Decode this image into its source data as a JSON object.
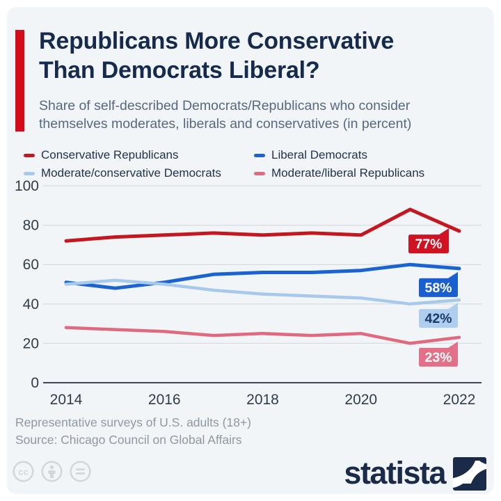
{
  "header": {
    "title": "Republicans More Conservative\nThan Democrats Liberal?",
    "subtitle": "Share of self-described Democrats/Republicans who consider\nthemselves moderates, liberals and conservatives (in percent)",
    "accent_color": "#d40b18"
  },
  "chart_data": {
    "type": "line",
    "x": [
      2014,
      2015,
      2016,
      2017,
      2018,
      2019,
      2020,
      2021,
      2022
    ],
    "x_tick_labels": [
      "2014",
      "2016",
      "2018",
      "2020",
      "2022"
    ],
    "ylim": [
      0,
      100
    ],
    "y_ticks": [
      0,
      20,
      40,
      60,
      80,
      100
    ],
    "grid": true,
    "legend_position": "top",
    "series": [
      {
        "name": "Conservative Republicans",
        "color": "#c4171f",
        "values": [
          72,
          74,
          75,
          76,
          75,
          76,
          75,
          88,
          77
        ],
        "end_label": "77%",
        "end_label_bg": "#d01223",
        "end_label_color": "#ffffff"
      },
      {
        "name": "Liberal Democrats",
        "color": "#1b63d1",
        "values": [
          51,
          48,
          51,
          55,
          56,
          56,
          57,
          60,
          58
        ],
        "end_label": "58%",
        "end_label_bg": "#1a5fd0",
        "end_label_color": "#ffffff"
      },
      {
        "name": "Moderate/conservative Democrats",
        "color": "#a7c9ec",
        "values": [
          50,
          52,
          50,
          47,
          45,
          44,
          43,
          40,
          42
        ],
        "end_label": "42%",
        "end_label_bg": "#aecdef",
        "end_label_color": "#1b3a68"
      },
      {
        "name": "Moderate/liberal Republicans",
        "color": "#e0697f",
        "values": [
          28,
          27,
          26,
          24,
          25,
          24,
          25,
          20,
          23
        ],
        "end_label": "23%",
        "end_label_bg": "#e27089",
        "end_label_color": "#ffffff"
      }
    ]
  },
  "footer": {
    "note": "Representative surveys of U.S. adults (18+)",
    "source": "Source: Chicago Council on Global Affairs",
    "brand": "statista",
    "license_icons": [
      "cc-icon",
      "attribution-person-icon",
      "equals-icon"
    ]
  },
  "colors": {
    "card_background": "#f2f5f8",
    "title": "#152a4c",
    "subtitle": "#57687e",
    "gridline": "#d9dde2",
    "axis_line": "#3d4956",
    "axis_labels": "#303c4a",
    "footer_text": "#8e98a3",
    "brand_navy": "#1a2b49",
    "license_icon_gray": "#d2d7dc"
  }
}
